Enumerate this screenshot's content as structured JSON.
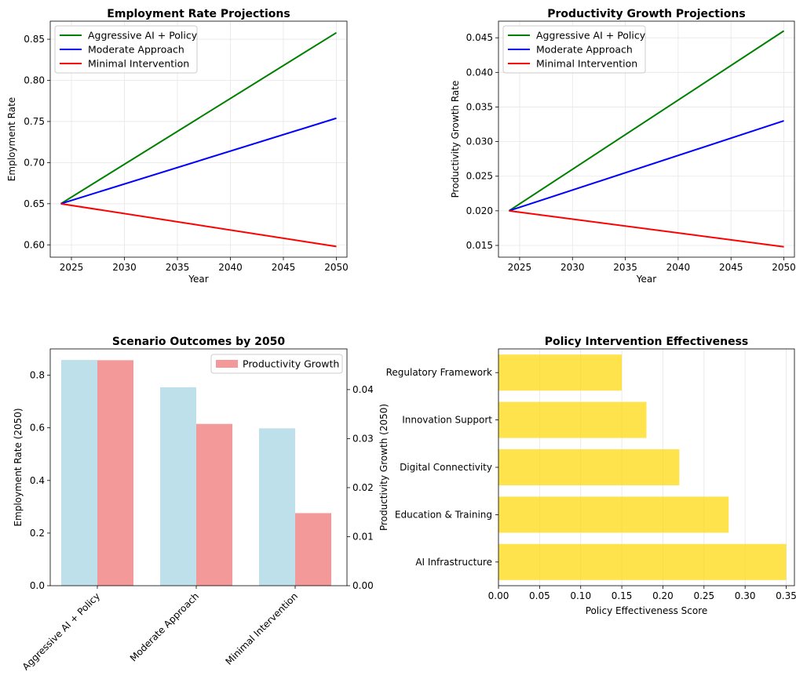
{
  "chart_data": [
    {
      "type": "line",
      "title": "Employment Rate Projections",
      "xlabel": "Year",
      "ylabel": "Employment Rate",
      "xlim": [
        2023,
        2051
      ],
      "ylim": [
        0.585,
        0.872
      ],
      "xticks": [
        2025,
        2030,
        2035,
        2040,
        2045,
        2050
      ],
      "yticks": [
        "0.60",
        "0.65",
        "0.70",
        "0.75",
        "0.80",
        "0.85"
      ],
      "grid": true,
      "legend": "top-left",
      "x": [
        2024,
        2050
      ],
      "series": [
        {
          "name": "Aggressive AI + Policy",
          "color": "#008000",
          "values": [
            0.65,
            0.858
          ]
        },
        {
          "name": "Moderate Approach",
          "color": "#0000ff",
          "values": [
            0.65,
            0.754
          ]
        },
        {
          "name": "Minimal Intervention",
          "color": "#ff0000",
          "values": [
            0.65,
            0.598
          ]
        }
      ]
    },
    {
      "type": "line",
      "title": "Productivity Growth Projections",
      "xlabel": "Year",
      "ylabel": "Productivity Growth Rate",
      "xlim": [
        2023,
        2051
      ],
      "ylim": [
        0.0133,
        0.0474
      ],
      "xticks": [
        2025,
        2030,
        2035,
        2040,
        2045,
        2050
      ],
      "yticks": [
        "0.015",
        "0.020",
        "0.025",
        "0.030",
        "0.035",
        "0.040",
        "0.045"
      ],
      "grid": true,
      "legend": "top-left",
      "x": [
        2024,
        2050
      ],
      "series": [
        {
          "name": "Aggressive AI + Policy",
          "color": "#008000",
          "values": [
            0.02,
            0.046
          ]
        },
        {
          "name": "Moderate Approach",
          "color": "#0000ff",
          "values": [
            0.02,
            0.033
          ]
        },
        {
          "name": "Minimal Intervention",
          "color": "#ff0000",
          "values": [
            0.02,
            0.0148
          ]
        }
      ]
    },
    {
      "type": "bar",
      "title": "Scenario Outcomes by 2050",
      "ylabel": "Employment Rate (2050)",
      "ylabel_right": "Productivity Growth (2050)",
      "categories": [
        "Aggressive AI + Policy",
        "Moderate Approach",
        "Minimal Intervention"
      ],
      "ylim": [
        0,
        0.9
      ],
      "ylim_right": [
        0,
        0.0483
      ],
      "yticks": [
        "0.0",
        "0.2",
        "0.4",
        "0.6",
        "0.8"
      ],
      "yticks_right": [
        "0.00",
        "0.01",
        "0.02",
        "0.03",
        "0.04"
      ],
      "legend": "top-right",
      "series": [
        {
          "name": "",
          "axis": "left",
          "color": "#add8e6",
          "values": [
            0.858,
            0.754,
            0.598
          ]
        },
        {
          "name": "Productivity Growth",
          "axis": "right",
          "color": "#f08080",
          "values": [
            0.046,
            0.033,
            0.0148
          ]
        }
      ]
    },
    {
      "type": "bar",
      "orientation": "horizontal",
      "title": "Policy Intervention Effectiveness",
      "xlabel": "Policy Effectiveness Score",
      "xlim": [
        0,
        0.36
      ],
      "xticks": [
        "0.00",
        "0.05",
        "0.10",
        "0.15",
        "0.20",
        "0.25",
        "0.30",
        "0.35"
      ],
      "grid": true,
      "color": "#ffd700",
      "categories": [
        "AI Infrastructure",
        "Education & Training",
        "Digital Connectivity",
        "Innovation Support",
        "Regulatory Framework"
      ],
      "values": [
        0.35,
        0.28,
        0.22,
        0.18,
        0.15
      ]
    }
  ]
}
